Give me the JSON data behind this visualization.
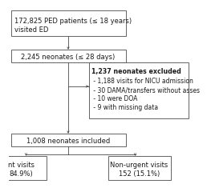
{
  "box1_line1": "172,825 PED patients (≤ 18 years)",
  "box1_line2": "visited ED",
  "box2_text": "2,245 neonates (≤ 28 days)",
  "box3_line0": "1,237 neonates excluded",
  "box3_line1": " - 1,188 visits for NICU admission",
  "box3_line2": " - 30 DAMA/transfers without asses",
  "box3_line3": " - 10 were DOA",
  "box3_line4": " - 9 with missing data",
  "box4_text": "1,008 neonates included",
  "box5_line1": "nt visits",
  "box5_line2": "84.9%)",
  "box6_line1": "Non-urgent visits",
  "box6_line2": "152 (15.1%)",
  "bg_color": "#ffffff",
  "box_edgecolor": "#4a4a4a",
  "box_facecolor": "#ffffff",
  "font_size": 6.0,
  "arrow_color": "#4a4a4a",
  "lw": 0.6
}
